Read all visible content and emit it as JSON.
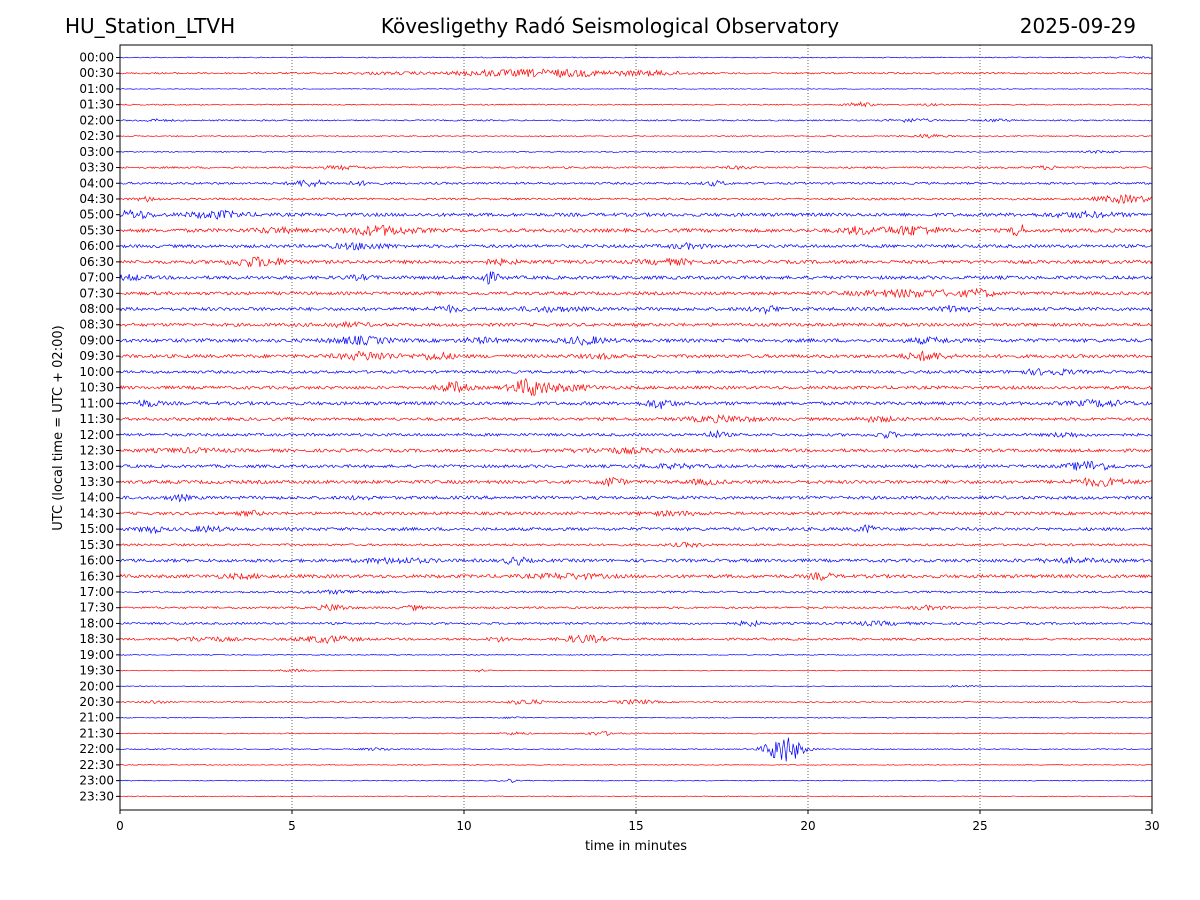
{
  "header": {
    "station": "HU_Station_LTVH",
    "title": "Kövesligethy Radó Seismological Observatory",
    "date": "2025-09-29"
  },
  "chart_data": {
    "type": "line",
    "title": "Kövesligethy Radó Seismological Observatory",
    "xlabel": "time in minutes",
    "ylabel": "UTC (local time = UTC + 02:00)",
    "xlim": [
      0,
      30
    ],
    "xticks": [
      0,
      5,
      10,
      15,
      20,
      25,
      30
    ],
    "grid": "vertical dotted lines at each x tick",
    "colors": {
      "even_rows": "#0000ff",
      "odd_rows": "#ff0000"
    },
    "rows": [
      {
        "label": "00:00",
        "level": 0.5,
        "events": [
          [
            29.5,
            0.6,
            0.5
          ]
        ]
      },
      {
        "label": "00:30",
        "level": 0.8,
        "events": [
          [
            12.5,
            2.0,
            3.5
          ],
          [
            15.5,
            1.0,
            1.8
          ],
          [
            10.5,
            0.8,
            1.2
          ],
          [
            8.0,
            1.5,
            0.8
          ]
        ]
      },
      {
        "label": "01:00",
        "level": 0.35,
        "events": []
      },
      {
        "label": "01:30",
        "level": 0.6,
        "events": [
          [
            21.5,
            0.4,
            2.0
          ],
          [
            23.5,
            0.3,
            1.0
          ]
        ]
      },
      {
        "label": "02:00",
        "level": 0.7,
        "events": [
          [
            1.0,
            0.5,
            1.0
          ],
          [
            23.0,
            0.6,
            1.5
          ],
          [
            25.5,
            0.4,
            1.0
          ]
        ]
      },
      {
        "label": "02:30",
        "level": 0.5,
        "events": [
          [
            23.5,
            0.5,
            1.8
          ]
        ]
      },
      {
        "label": "03:00",
        "level": 0.55,
        "events": [
          [
            28.5,
            0.5,
            1.0
          ]
        ]
      },
      {
        "label": "03:30",
        "level": 0.9,
        "events": [
          [
            6.5,
            0.6,
            1.5
          ],
          [
            18.0,
            0.4,
            1.2
          ],
          [
            27.0,
            0.4,
            1.5
          ]
        ]
      },
      {
        "label": "04:00",
        "level": 1.1,
        "events": [
          [
            5.5,
            0.5,
            3.0
          ],
          [
            17.3,
            0.3,
            2.0
          ],
          [
            7.0,
            0.4,
            1.5
          ]
        ]
      },
      {
        "label": "04:30",
        "level": 1.0,
        "events": [
          [
            29.2,
            0.8,
            3.5
          ],
          [
            0.8,
            0.3,
            2.0
          ]
        ]
      },
      {
        "label": "05:00",
        "level": 1.7,
        "events": [
          [
            0.4,
            0.5,
            3.5
          ],
          [
            2.8,
            0.8,
            3.0
          ],
          [
            28.0,
            1.0,
            2.0
          ]
        ]
      },
      {
        "label": "05:30",
        "level": 1.8,
        "events": [
          [
            7.5,
            1.0,
            4.0
          ],
          [
            26.1,
            0.12,
            15.0
          ],
          [
            23.0,
            0.8,
            4.0
          ],
          [
            21.5,
            0.5,
            3.0
          ],
          [
            4.5,
            0.6,
            2.0
          ]
        ]
      },
      {
        "label": "06:00",
        "level": 1.6,
        "events": [
          [
            7.0,
            0.8,
            2.5
          ],
          [
            16.5,
            0.5,
            2.0
          ]
        ]
      },
      {
        "label": "06:30",
        "level": 1.7,
        "events": [
          [
            4.0,
            0.8,
            4.0
          ],
          [
            11.0,
            0.5,
            2.0
          ],
          [
            16.0,
            0.8,
            2.0
          ]
        ]
      },
      {
        "label": "07:00",
        "level": 1.7,
        "events": [
          [
            10.7,
            0.3,
            5.0
          ],
          [
            0.3,
            0.4,
            2.0
          ],
          [
            7.0,
            0.4,
            1.5
          ]
        ]
      },
      {
        "label": "07:30",
        "level": 1.6,
        "events": [
          [
            23.0,
            1.5,
            3.0
          ],
          [
            25.0,
            0.4,
            3.0
          ]
        ]
      },
      {
        "label": "08:00",
        "level": 1.7,
        "events": [
          [
            9.5,
            0.4,
            2.5
          ],
          [
            18.8,
            0.4,
            3.0
          ],
          [
            24.3,
            0.4,
            3.0
          ],
          [
            12.5,
            0.8,
            1.8
          ]
        ]
      },
      {
        "label": "08:30",
        "level": 1.6,
        "events": [
          [
            6.5,
            0.8,
            1.5
          ]
        ]
      },
      {
        "label": "09:00",
        "level": 1.8,
        "events": [
          [
            7.0,
            0.8,
            3.0
          ],
          [
            13.5,
            0.6,
            3.0
          ],
          [
            10.5,
            0.5,
            2.0
          ],
          [
            23.5,
            0.6,
            2.0
          ]
        ]
      },
      {
        "label": "09:30",
        "level": 1.7,
        "events": [
          [
            7.2,
            0.8,
            3.5
          ],
          [
            9.2,
            0.5,
            3.0
          ],
          [
            23.4,
            0.6,
            3.5
          ],
          [
            14.0,
            0.5,
            1.5
          ]
        ]
      },
      {
        "label": "10:00",
        "level": 1.4,
        "events": [
          [
            27.0,
            0.8,
            2.5
          ]
        ]
      },
      {
        "label": "10:30",
        "level": 1.6,
        "events": [
          [
            11.9,
            0.5,
            8.0
          ],
          [
            9.7,
            0.4,
            5.0
          ],
          [
            13.0,
            0.8,
            2.5
          ]
        ]
      },
      {
        "label": "11:00",
        "level": 1.7,
        "events": [
          [
            0.8,
            0.3,
            3.0
          ],
          [
            15.7,
            0.4,
            4.0
          ],
          [
            28.5,
            0.8,
            2.5
          ]
        ]
      },
      {
        "label": "11:30",
        "level": 1.5,
        "events": [
          [
            17.5,
            1.0,
            2.5
          ],
          [
            22.0,
            0.6,
            1.8
          ]
        ]
      },
      {
        "label": "12:00",
        "level": 1.4,
        "events": [
          [
            17.3,
            0.3,
            3.0
          ],
          [
            22.3,
            0.3,
            2.5
          ],
          [
            27.5,
            0.4,
            2.0
          ]
        ]
      },
      {
        "label": "12:30",
        "level": 1.6,
        "events": [
          [
            14.5,
            1.5,
            1.8
          ],
          [
            2.0,
            1.0,
            1.5
          ]
        ]
      },
      {
        "label": "13:00",
        "level": 1.5,
        "events": [
          [
            28.2,
            0.6,
            4.5
          ],
          [
            16.0,
            1.0,
            1.5
          ]
        ]
      },
      {
        "label": "13:30",
        "level": 1.7,
        "events": [
          [
            14.3,
            0.3,
            4.0
          ],
          [
            28.5,
            0.8,
            3.0
          ],
          [
            17.0,
            0.5,
            1.8
          ]
        ]
      },
      {
        "label": "14:00",
        "level": 1.6,
        "events": [
          [
            1.7,
            0.3,
            2.5
          ],
          [
            7.0,
            0.3,
            1.5
          ]
        ]
      },
      {
        "label": "14:30",
        "level": 1.5,
        "events": [
          [
            3.8,
            0.3,
            2.0
          ],
          [
            16.0,
            0.8,
            1.5
          ]
        ]
      },
      {
        "label": "15:00",
        "level": 1.6,
        "events": [
          [
            0.9,
            0.3,
            3.0
          ],
          [
            21.7,
            0.3,
            3.0
          ],
          [
            2.5,
            0.5,
            2.0
          ]
        ]
      },
      {
        "label": "15:30",
        "level": 1.1,
        "events": [
          [
            16.5,
            0.5,
            1.5
          ]
        ]
      },
      {
        "label": "16:00",
        "level": 1.6,
        "events": [
          [
            11.5,
            0.3,
            3.5
          ],
          [
            8.0,
            1.0,
            2.0
          ],
          [
            27.5,
            1.0,
            1.5
          ]
        ]
      },
      {
        "label": "16:30",
        "level": 1.7,
        "events": [
          [
            20.4,
            0.3,
            3.0
          ],
          [
            13.0,
            1.0,
            2.0
          ],
          [
            3.5,
            0.6,
            1.5
          ]
        ]
      },
      {
        "label": "17:00",
        "level": 1.0,
        "events": [
          [
            6.5,
            1.0,
            1.3
          ]
        ]
      },
      {
        "label": "17:30",
        "level": 1.0,
        "events": [
          [
            6.2,
            0.4,
            3.0
          ],
          [
            8.5,
            0.3,
            2.0
          ],
          [
            23.5,
            0.5,
            1.8
          ]
        ]
      },
      {
        "label": "18:00",
        "level": 1.1,
        "events": [
          [
            18.3,
            0.3,
            2.5
          ],
          [
            22.0,
            0.8,
            1.5
          ]
        ]
      },
      {
        "label": "18:30",
        "level": 1.1,
        "events": [
          [
            6.0,
            0.8,
            3.0
          ],
          [
            13.5,
            0.6,
            3.5
          ],
          [
            2.5,
            0.8,
            2.0
          ],
          [
            11.0,
            0.3,
            2.0
          ]
        ]
      },
      {
        "label": "19:00",
        "level": 0.45,
        "events": []
      },
      {
        "label": "19:30",
        "level": 0.4,
        "events": [
          [
            10.5,
            0.2,
            1.5
          ],
          [
            5.0,
            0.5,
            1.0
          ]
        ]
      },
      {
        "label": "20:00",
        "level": 0.4,
        "events": [
          [
            24.5,
            0.4,
            1.0
          ]
        ]
      },
      {
        "label": "20:30",
        "level": 0.6,
        "events": [
          [
            11.8,
            0.5,
            2.5
          ],
          [
            15.0,
            0.6,
            2.0
          ],
          [
            1.0,
            0.3,
            1.5
          ]
        ]
      },
      {
        "label": "21:00",
        "level": 0.4,
        "events": [
          [
            11.5,
            0.3,
            1.0
          ]
        ]
      },
      {
        "label": "21:30",
        "level": 0.5,
        "events": [
          [
            14.0,
            0.5,
            1.8
          ],
          [
            11.5,
            0.4,
            1.2
          ]
        ]
      },
      {
        "label": "22:00",
        "level": 0.5,
        "events": [
          [
            19.3,
            0.5,
            14.0
          ],
          [
            7.5,
            0.5,
            1.2
          ]
        ]
      },
      {
        "label": "22:30",
        "level": 0.4,
        "events": []
      },
      {
        "label": "23:00",
        "level": 0.45,
        "events": [
          [
            11.3,
            0.2,
            2.0
          ]
        ]
      },
      {
        "label": "23:30",
        "level": 0.4,
        "events": []
      }
    ]
  }
}
